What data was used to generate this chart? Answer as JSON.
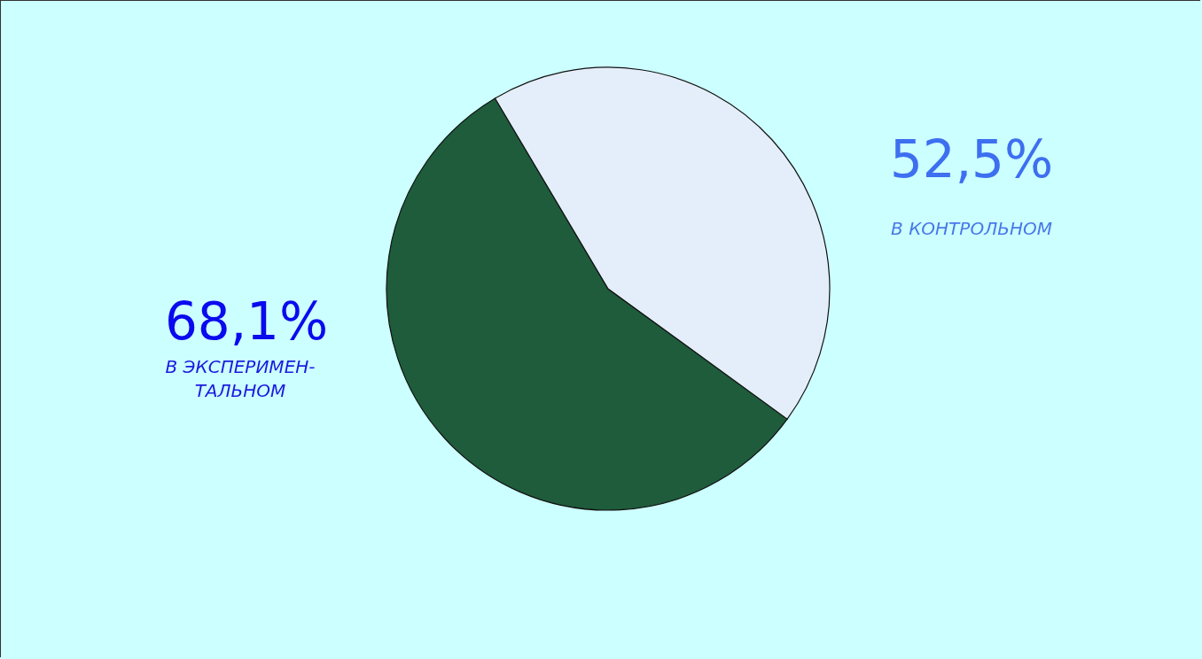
{
  "chart_data": {
    "type": "pie",
    "categories": [
      "В ЭКСПЕРИМЕН-\nТАЛЬНОМ",
      "В КОНТРОЛЬНОМ"
    ],
    "values": [
      68.1,
      52.5
    ],
    "value_labels": [
      "68,1%",
      "52,5%"
    ],
    "colors": [
      "#1e5c3c",
      "#e4eefa"
    ]
  }
}
